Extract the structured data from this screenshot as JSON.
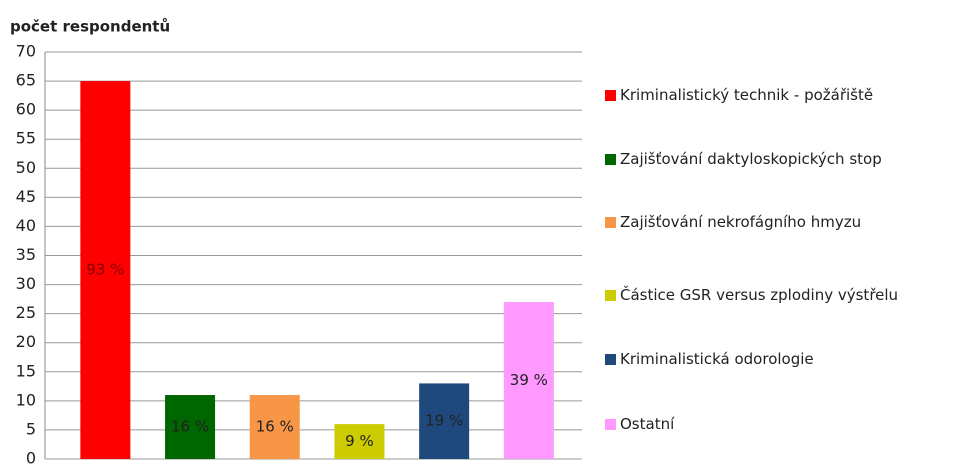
{
  "chart_data": {
    "type": "bar",
    "y_label": "počet respondentů",
    "categories": [
      "Kriminalistický technik - požářiště",
      "Zajišťování daktyloskopických stop",
      "Zajišťování nekrofágního hmyzu",
      "Částice GSR versus zplodiny výstřelu",
      "Kriminalistická odorologie",
      "Ostatní"
    ],
    "values": [
      65,
      11,
      11,
      6,
      13,
      27
    ],
    "percent_labels": [
      "93 %",
      "16 %",
      "16 %",
      "9 %",
      "19 %",
      "39 %"
    ],
    "colors": [
      "#ff0000",
      "#006600",
      "#f79646",
      "#cccc00",
      "#1f497d",
      "#ff99ff"
    ],
    "ylim": [
      0,
      70
    ],
    "yticks": [
      0,
      5,
      10,
      15,
      20,
      25,
      30,
      35,
      40,
      45,
      50,
      55,
      60,
      65,
      70
    ],
    "grid": true
  }
}
